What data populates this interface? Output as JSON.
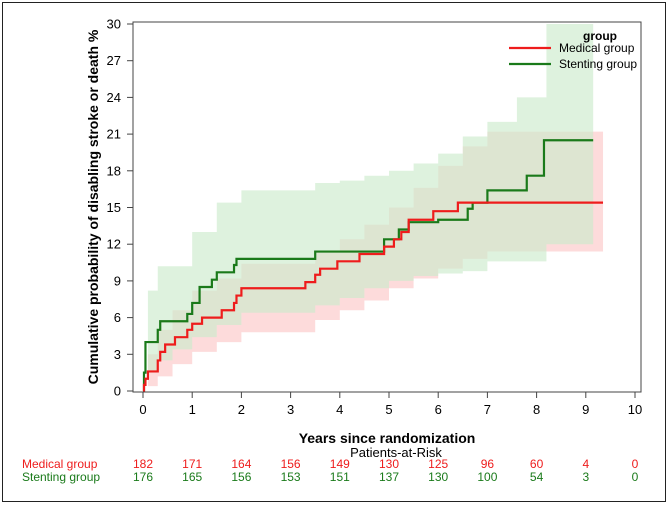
{
  "chart_data": {
    "type": "line",
    "step": true,
    "xlabel": "Years since randomization",
    "ylabel": "Cumulative probability of disabling stroke or death %",
    "xlim": [
      0,
      10
    ],
    "ylim": [
      0,
      30
    ],
    "xticks": [
      "0",
      "1",
      "2",
      "3",
      "4",
      "5",
      "6",
      "7",
      "8",
      "9",
      "10"
    ],
    "yticks": [
      "0",
      "3",
      "6",
      "9",
      "12",
      "15",
      "18",
      "21",
      "24",
      "27",
      "30"
    ],
    "legend": {
      "title": "group",
      "position": "top-right"
    },
    "series": [
      {
        "name": "Medical group",
        "color": "#ee1c1c",
        "band_color": "#fcc8c8",
        "points": [
          [
            0,
            0
          ],
          [
            0.02,
            0.5
          ],
          [
            0.05,
            1
          ],
          [
            0.1,
            1.6
          ],
          [
            0.3,
            2.5
          ],
          [
            0.35,
            3.2
          ],
          [
            0.45,
            3.8
          ],
          [
            0.65,
            4.4
          ],
          [
            0.9,
            5.0
          ],
          [
            1.0,
            5.5
          ],
          [
            1.2,
            6.0
          ],
          [
            1.6,
            6.6
          ],
          [
            1.85,
            7.2
          ],
          [
            1.9,
            7.8
          ],
          [
            2.0,
            8.4
          ],
          [
            3.3,
            8.9
          ],
          [
            3.5,
            9.5
          ],
          [
            3.6,
            10.0
          ],
          [
            3.95,
            10.6
          ],
          [
            4.4,
            11.2
          ],
          [
            4.9,
            11.8
          ],
          [
            5.1,
            12.4
          ],
          [
            5.25,
            13.0
          ],
          [
            5.4,
            14.0
          ],
          [
            5.9,
            14.7
          ],
          [
            6.4,
            15.4
          ],
          [
            9.35,
            15.4
          ]
        ],
        "ci_lower": [
          [
            0,
            0
          ],
          [
            0.1,
            0.4
          ],
          [
            0.3,
            1.2
          ],
          [
            0.6,
            2.2
          ],
          [
            1.0,
            3.2
          ],
          [
            1.5,
            4.0
          ],
          [
            2.0,
            4.8
          ],
          [
            3.5,
            5.8
          ],
          [
            4.0,
            6.6
          ],
          [
            4.5,
            7.4
          ],
          [
            5.0,
            8.4
          ],
          [
            5.5,
            9.2
          ],
          [
            6.0,
            10.0
          ],
          [
            6.5,
            10.8
          ],
          [
            7.0,
            11.4
          ],
          [
            9.35,
            10.8
          ]
        ],
        "ci_upper": [
          [
            0,
            0
          ],
          [
            0.1,
            3.0
          ],
          [
            0.3,
            5.0
          ],
          [
            0.6,
            6.6
          ],
          [
            1.0,
            8.2
          ],
          [
            1.5,
            9.2
          ],
          [
            2.0,
            10.4
          ],
          [
            3.5,
            11.4
          ],
          [
            4.0,
            12.4
          ],
          [
            4.5,
            13.6
          ],
          [
            5.0,
            15.0
          ],
          [
            5.5,
            16.6
          ],
          [
            6.0,
            18.4
          ],
          [
            6.5,
            20.0
          ],
          [
            7.0,
            21.2
          ],
          [
            9.35,
            22.2
          ]
        ]
      },
      {
        "name": "Stenting group",
        "color": "#1a7a1a",
        "band_color": "#cdebcd",
        "points": [
          [
            0,
            0
          ],
          [
            0.02,
            1.5
          ],
          [
            0.05,
            4.0
          ],
          [
            0.3,
            5.0
          ],
          [
            0.35,
            5.7
          ],
          [
            0.9,
            6.3
          ],
          [
            1.0,
            7.2
          ],
          [
            1.15,
            8.5
          ],
          [
            1.4,
            9.1
          ],
          [
            1.5,
            9.7
          ],
          [
            1.85,
            10.3
          ],
          [
            1.9,
            10.8
          ],
          [
            3.5,
            11.4
          ],
          [
            4.4,
            11.4
          ],
          [
            4.9,
            12.4
          ],
          [
            5.2,
            13.2
          ],
          [
            5.4,
            13.8
          ],
          [
            6.0,
            14.0
          ],
          [
            6.6,
            14.9
          ],
          [
            6.7,
            15.4
          ],
          [
            7.0,
            16.4
          ],
          [
            7.8,
            17.6
          ],
          [
            8.15,
            20.5
          ],
          [
            9.15,
            20.5
          ]
        ],
        "ci_lower": [
          [
            0,
            0
          ],
          [
            0.1,
            1.5
          ],
          [
            0.3,
            2.5
          ],
          [
            0.6,
            3.4
          ],
          [
            1.0,
            4.4
          ],
          [
            1.5,
            5.4
          ],
          [
            2.0,
            6.4
          ],
          [
            3.5,
            7.0
          ],
          [
            4.0,
            7.6
          ],
          [
            4.5,
            8.4
          ],
          [
            5.0,
            9.0
          ],
          [
            5.5,
            9.4
          ],
          [
            6.0,
            9.6
          ],
          [
            6.5,
            9.8
          ],
          [
            7.0,
            10.6
          ],
          [
            8.2,
            12.0
          ],
          [
            9.15,
            13.8
          ]
        ],
        "ci_upper": [
          [
            0,
            0
          ],
          [
            0.1,
            8.2
          ],
          [
            0.3,
            10.2
          ],
          [
            0.6,
            10.2
          ],
          [
            1.0,
            13.0
          ],
          [
            1.5,
            15.4
          ],
          [
            2.0,
            16.4
          ],
          [
            3.5,
            17.0
          ],
          [
            4.0,
            17.2
          ],
          [
            4.5,
            17.6
          ],
          [
            5.0,
            18.0
          ],
          [
            5.5,
            18.6
          ],
          [
            6.0,
            19.4
          ],
          [
            6.5,
            20.8
          ],
          [
            7.0,
            22.0
          ],
          [
            7.6,
            24.0
          ],
          [
            8.2,
            30.0
          ],
          [
            9.15,
            30.0
          ]
        ]
      }
    ],
    "risk_table": {
      "title": "Patients-at-Risk",
      "rows": [
        {
          "label": "Medical group",
          "color": "#ee1c1c",
          "values": [
            "182",
            "171",
            "164",
            "156",
            "149",
            "130",
            "125",
            "96",
            "60",
            "4",
            "0"
          ]
        },
        {
          "label": "Stenting group",
          "color": "#1a7a1a",
          "values": [
            "176",
            "165",
            "156",
            "153",
            "151",
            "137",
            "130",
            "100",
            "54",
            "3",
            "0"
          ]
        }
      ]
    }
  }
}
